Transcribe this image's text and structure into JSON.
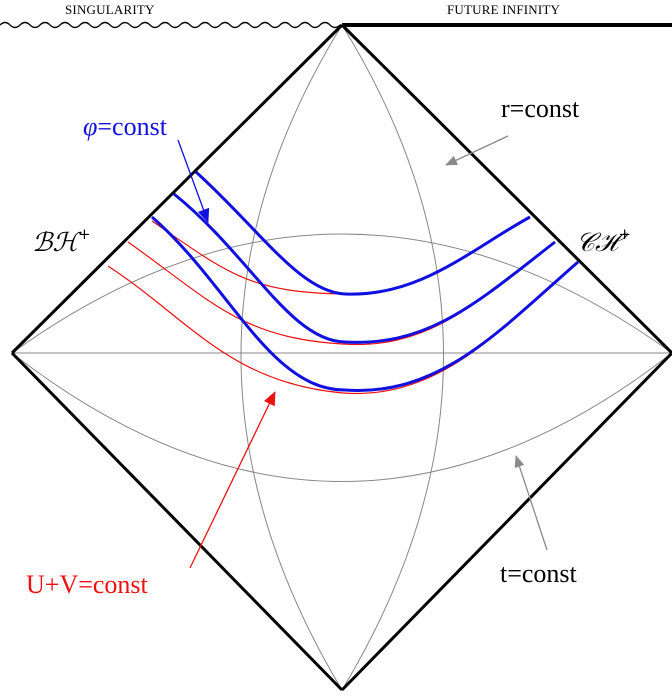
{
  "labels": {
    "singularity": "SINGULARITY",
    "future_infinity": "FUTURE INFINITY",
    "phi_symbol": "φ",
    "phi_rest": "=const",
    "r_const": "r=const",
    "bh_main": "ℬℋ",
    "bh_sup": "+",
    "ch_main": "𝒞ℋ",
    "ch_sup": "+",
    "uv_const": "U+V=const",
    "t_const": "t=const"
  },
  "colors": {
    "frame": "#000000",
    "grid": "#888888",
    "blue": "#1010e0",
    "red": "#ee1010",
    "arrow_gray": "#8a8a8a"
  }
}
